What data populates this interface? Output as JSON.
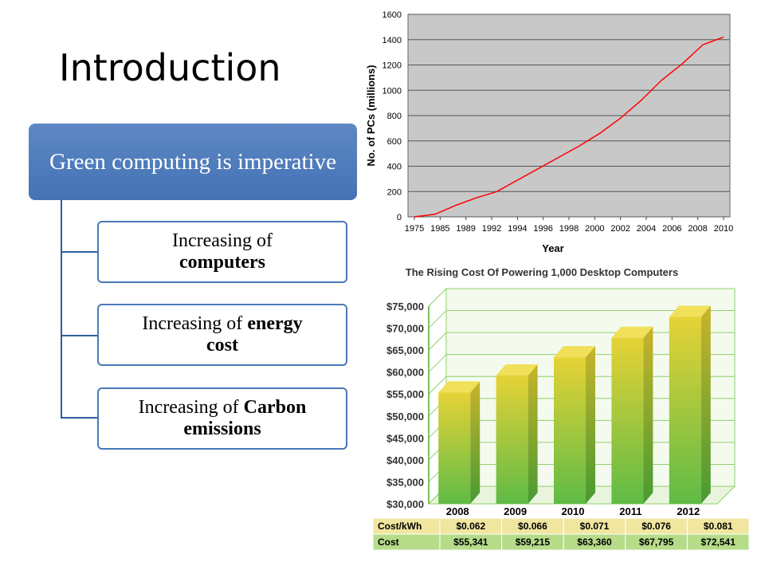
{
  "slide": {
    "title": "Introduction"
  },
  "diagram": {
    "root": "Green computing is imperative",
    "children": [
      {
        "normal": "Increasing of",
        "bold": "computers"
      },
      {
        "normal": "Increasing of",
        "bold_inline": "energy",
        "bold": "cost"
      },
      {
        "normal": "Increasing of",
        "bold_inline": "Carbon",
        "bold": "emissions"
      }
    ]
  },
  "chart_data": [
    {
      "type": "line",
      "title": "",
      "xlabel": "Year",
      "ylabel": "No. of PCs (millions)",
      "x_tick_labels": [
        "1975",
        "1985",
        "1989",
        "1992",
        "1994",
        "1996",
        "1998",
        "2000",
        "2002",
        "2004",
        "2006",
        "2008",
        "2010"
      ],
      "y_ticks": [
        0,
        200,
        400,
        600,
        800,
        1000,
        1200,
        1400,
        1600
      ],
      "ylim": [
        0,
        1600
      ],
      "grid": true,
      "colors": {
        "background": "#c8c8c8",
        "line": "#ff0000",
        "grid": "#555555"
      },
      "series": [
        {
          "values": [
            0,
            20,
            90,
            150,
            200,
            290,
            380,
            470,
            560,
            660,
            780,
            920,
            1080,
            1210,
            1360,
            1420
          ]
        }
      ]
    },
    {
      "type": "bar",
      "title": "The Rising Cost Of Powering 1,000 Desktop Computers",
      "categories": [
        "2008",
        "2009",
        "2010",
        "2011",
        "2012"
      ],
      "values": [
        55341,
        59215,
        63360,
        67795,
        72541
      ],
      "ylim": [
        30000,
        75000
      ],
      "y_tick_labels": [
        "$75,000",
        "$70,000",
        "$65,000",
        "$60,000",
        "$55,000",
        "$50,000",
        "$45,000",
        "$40,000",
        "$35,000",
        "$30,000"
      ],
      "colors": {
        "bar_top": "#e8d23a",
        "bar_bottom": "#6cc04a",
        "grid": "#8fcf6a"
      },
      "table": {
        "rows": [
          {
            "label": "Cost/kWh",
            "values": [
              "$0.062",
              "$0.066",
              "$0.071",
              "$0.076",
              "$0.081"
            ],
            "color": "#f0e6a0"
          },
          {
            "label": "Cost",
            "values": [
              "$55,341",
              "$59,215",
              "$63,360",
              "$67,795",
              "$72,541"
            ],
            "color": "#b6dc8a"
          }
        ]
      }
    }
  ]
}
